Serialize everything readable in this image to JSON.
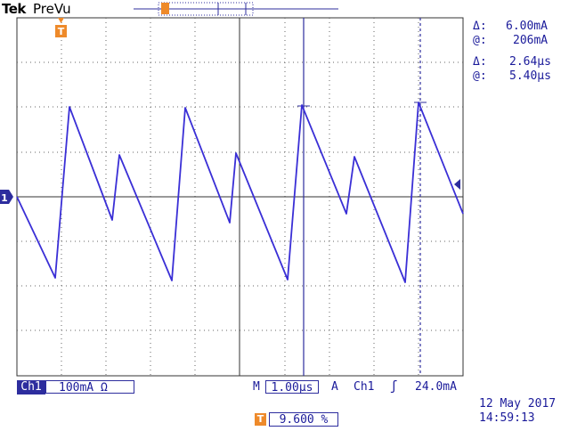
{
  "header": {
    "brand": "Tek",
    "mode": "PreVu"
  },
  "cursor_readout": {
    "delta_amp_symbol": "Δ:",
    "delta_amp": "6.00mA",
    "at_amp_symbol": "@:",
    "at_amp": "206mA",
    "delta_time_symbol": "Δ:",
    "delta_time": "2.64μs",
    "at_time_symbol": "@:",
    "at_time": "5.40μs"
  },
  "channel": {
    "label": "Ch1",
    "scale": "100mA Ω",
    "marker": "1"
  },
  "timebase": {
    "prefix": "M",
    "scale": "1.00μs"
  },
  "trigger": {
    "mode": "A",
    "source": "Ch1",
    "slope_symbol": "ʃ",
    "level": "24.0mA",
    "position": "9.600 %",
    "marker": "T"
  },
  "datetime": {
    "date": "12 May 2017",
    "time": "14:59:13"
  },
  "colors": {
    "trace": "#3a2fd6",
    "text": "#1a1a9a",
    "trigger": "#ee8a2a"
  }
}
